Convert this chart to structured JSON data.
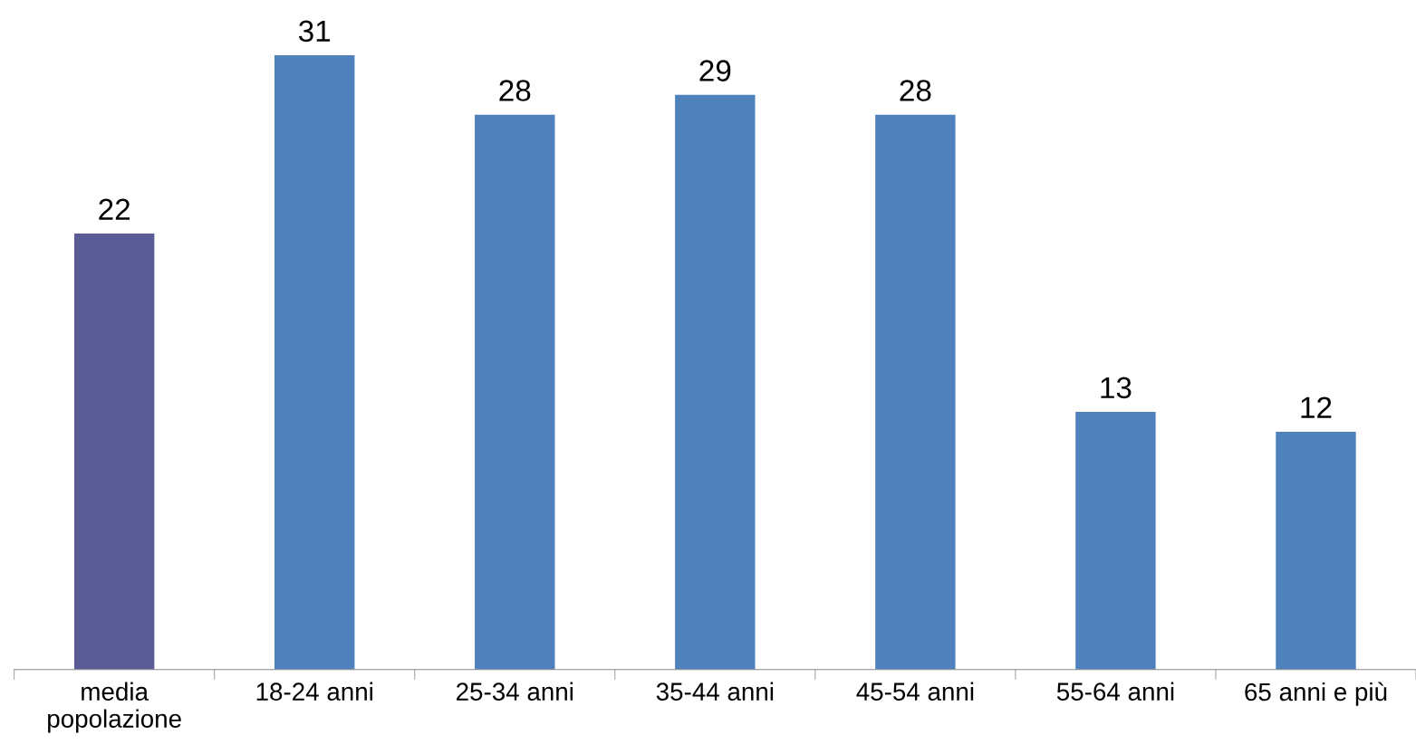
{
  "chart_data": {
    "type": "bar",
    "categories": [
      "media\npopolazione",
      "18-24 anni",
      "25-34 anni",
      "35-44 anni",
      "45-54 anni",
      "55-64 anni",
      "65 anni e più"
    ],
    "values": [
      22,
      31,
      28,
      29,
      28,
      13,
      12
    ],
    "colors": [
      "#5b5b98",
      "#4f81bd",
      "#4f81bd",
      "#4f81bd",
      "#4f81bd",
      "#4f81bd",
      "#4f81bd"
    ],
    "data_labels": true,
    "tick_labels": "x",
    "grid": false,
    "legend": false
  }
}
